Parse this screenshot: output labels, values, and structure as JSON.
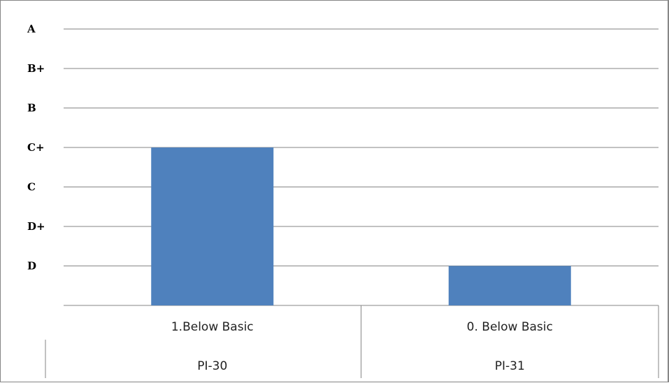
{
  "chart_data": {
    "type": "bar",
    "y_scale": "ordinal grade levels (bottom level unlabeled)",
    "y_levels": [
      "",
      "D",
      "D+",
      "C",
      "C+",
      "B",
      "B+",
      "A"
    ],
    "categories": [
      {
        "label": "1.Below Basic",
        "group": "PI-30"
      },
      {
        "label": "0. Below Basic",
        "group": "PI-31"
      }
    ],
    "values": [
      4,
      1
    ],
    "value_grades": [
      "C+",
      "D"
    ],
    "ylim": [
      0,
      7
    ],
    "grid": true,
    "legend": "none",
    "bar_color": "#4F81BD",
    "title": "",
    "xlabel": "",
    "ylabel": ""
  }
}
